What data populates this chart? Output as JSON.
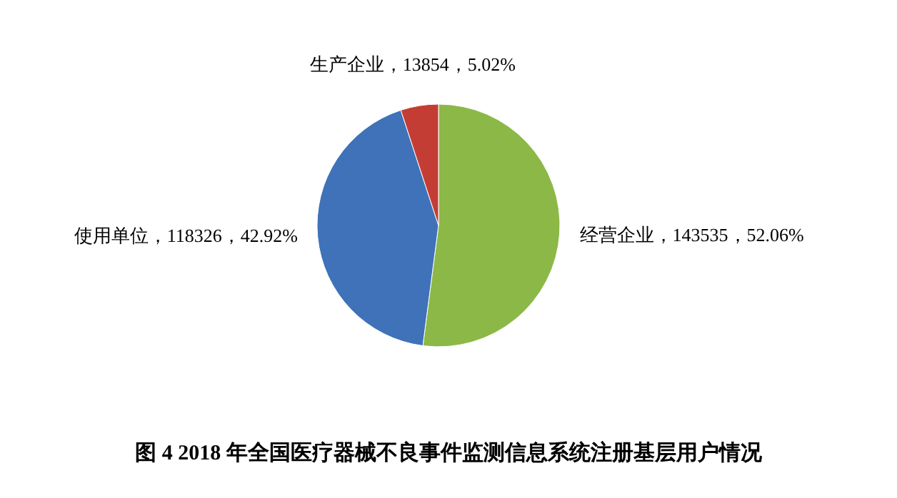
{
  "chart_data": {
    "type": "pie",
    "title": "图 4 2018 年全国医疗器械不良事件监测信息系统注册基层用户情况",
    "categories": [
      "经营企业",
      "使用单位",
      "生产企业"
    ],
    "values": [
      143535,
      118326,
      13854
    ],
    "colors": [
      "#8cb847",
      "#3f72b8",
      "#c43d35"
    ],
    "value_labels": [
      "143535，52.06%",
      "118326，42.92%",
      "13854，5.02%"
    ]
  }
}
